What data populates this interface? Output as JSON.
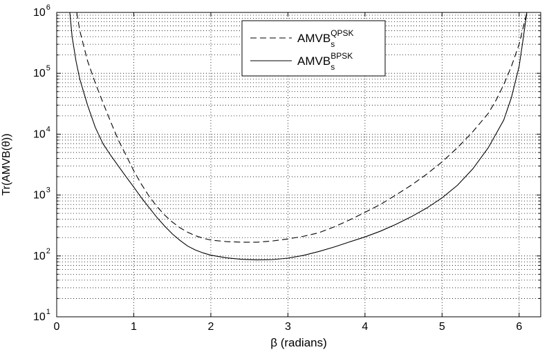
{
  "chart_data": {
    "type": "line",
    "title": "",
    "xlabel": "β (radians)",
    "ylabel": "Tr(AMVB(θ))",
    "xlim": [
      0,
      6.28
    ],
    "ylim": [
      10,
      1000000
    ],
    "yscale": "log",
    "grid": true,
    "legend_position": "top-center",
    "x_ticks": [
      {
        "value": 0,
        "label": "0"
      },
      {
        "value": 1,
        "label": "1"
      },
      {
        "value": 2,
        "label": "2"
      },
      {
        "value": 3,
        "label": "3"
      },
      {
        "value": 4,
        "label": "4"
      },
      {
        "value": 5,
        "label": "5"
      },
      {
        "value": 6,
        "label": "6"
      }
    ],
    "y_ticks": [
      {
        "value": 10,
        "mantissa": "10",
        "exponent": "1"
      },
      {
        "value": 100,
        "mantissa": "10",
        "exponent": "2"
      },
      {
        "value": 1000,
        "mantissa": "10",
        "exponent": "3"
      },
      {
        "value": 10000,
        "mantissa": "10",
        "exponent": "4"
      },
      {
        "value": 100000,
        "mantissa": "10",
        "exponent": "5"
      },
      {
        "value": 1000000,
        "mantissa": "10",
        "exponent": "6"
      }
    ],
    "series": [
      {
        "name": "AMVB_s^QPSK",
        "label_base": "AMVB",
        "label_sub": "s",
        "label_sup": "QPSK",
        "line_style": "dashed",
        "color": "#000000",
        "points": [
          [
            0.26,
            1000000
          ],
          [
            0.3,
            500000
          ],
          [
            0.4,
            160000
          ],
          [
            0.5,
            70000
          ],
          [
            0.6,
            33000
          ],
          [
            0.7,
            16000
          ],
          [
            0.8,
            8000
          ],
          [
            0.9,
            4500
          ],
          [
            1.0,
            2500
          ],
          [
            1.1,
            1500
          ],
          [
            1.2,
            950
          ],
          [
            1.3,
            650
          ],
          [
            1.4,
            470
          ],
          [
            1.5,
            360
          ],
          [
            1.6,
            290
          ],
          [
            1.7,
            245
          ],
          [
            1.8,
            215
          ],
          [
            1.9,
            195
          ],
          [
            2.0,
            182
          ],
          [
            2.2,
            172
          ],
          [
            2.4,
            168
          ],
          [
            2.6,
            168
          ],
          [
            2.8,
            176
          ],
          [
            3.0,
            190
          ],
          [
            3.2,
            210
          ],
          [
            3.4,
            240
          ],
          [
            3.6,
            300
          ],
          [
            3.8,
            390
          ],
          [
            4.0,
            520
          ],
          [
            4.2,
            700
          ],
          [
            4.4,
            1000
          ],
          [
            4.6,
            1450
          ],
          [
            4.8,
            2200
          ],
          [
            5.0,
            3500
          ],
          [
            5.2,
            6000
          ],
          [
            5.4,
            11000
          ],
          [
            5.6,
            22000
          ],
          [
            5.7,
            36000
          ],
          [
            5.8,
            65000
          ],
          [
            5.9,
            130000
          ],
          [
            6.0,
            300000
          ],
          [
            6.07,
            700000
          ],
          [
            6.1,
            1000000
          ]
        ]
      },
      {
        "name": "AMVB_s^BPSK",
        "label_base": "AMVB",
        "label_sub": "s",
        "label_sup": "BPSK",
        "line_style": "solid",
        "color": "#000000",
        "points": [
          [
            0.17,
            1000000
          ],
          [
            0.2,
            400000
          ],
          [
            0.25,
            160000
          ],
          [
            0.3,
            80000
          ],
          [
            0.4,
            30000
          ],
          [
            0.5,
            13000
          ],
          [
            0.6,
            7000
          ],
          [
            0.7,
            4500
          ],
          [
            0.8,
            3000
          ],
          [
            0.9,
            2000
          ],
          [
            1.0,
            1350
          ],
          [
            1.1,
            900
          ],
          [
            1.2,
            620
          ],
          [
            1.3,
            430
          ],
          [
            1.4,
            310
          ],
          [
            1.5,
            230
          ],
          [
            1.6,
            180
          ],
          [
            1.7,
            145
          ],
          [
            1.8,
            125
          ],
          [
            1.9,
            112
          ],
          [
            2.0,
            103
          ],
          [
            2.2,
            93
          ],
          [
            2.4,
            88
          ],
          [
            2.6,
            86
          ],
          [
            2.8,
            87
          ],
          [
            3.0,
            92
          ],
          [
            3.2,
            102
          ],
          [
            3.4,
            118
          ],
          [
            3.6,
            140
          ],
          [
            3.8,
            170
          ],
          [
            4.0,
            205
          ],
          [
            4.2,
            255
          ],
          [
            4.4,
            330
          ],
          [
            4.6,
            440
          ],
          [
            4.8,
            610
          ],
          [
            5.0,
            900
          ],
          [
            5.2,
            1450
          ],
          [
            5.4,
            2700
          ],
          [
            5.6,
            6000
          ],
          [
            5.8,
            17000
          ],
          [
            5.9,
            40000
          ],
          [
            6.0,
            130000
          ],
          [
            6.05,
            350000
          ],
          [
            6.1,
            1000000
          ]
        ]
      }
    ]
  }
}
